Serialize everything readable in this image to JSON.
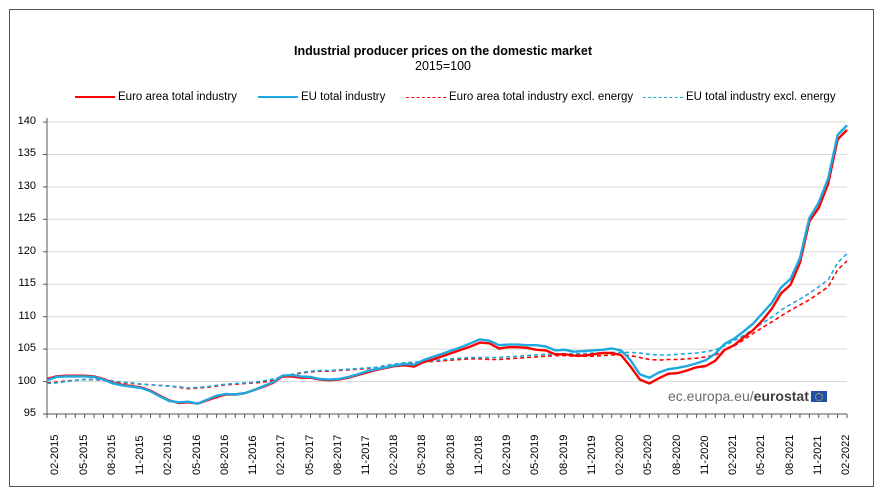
{
  "chart_data": {
    "type": "line",
    "title": "Industrial producer prices on the domestic market",
    "subtitle": "2015=100",
    "xlabel": "",
    "ylabel": "",
    "ylim": [
      95,
      140
    ],
    "yticks": [
      95,
      100,
      105,
      110,
      115,
      120,
      125,
      130,
      135,
      140
    ],
    "grid": true,
    "legend_position": "top",
    "x_tick_labels": [
      "02-2015",
      "05-2015",
      "08-2015",
      "11-2015",
      "02-2016",
      "05-2016",
      "08-2016",
      "11-2016",
      "02-2017",
      "05-2017",
      "08-2017",
      "11-2017",
      "02-2018",
      "05-2018",
      "08-2018",
      "11-2018",
      "02-2019",
      "05-2019",
      "08-2019",
      "11-2019",
      "02-2020",
      "05-2020",
      "08-2020",
      "11-2020",
      "02-2021",
      "05-2021",
      "08-2021",
      "11-2021",
      "02-2022"
    ],
    "x_start": "01-2015",
    "x_end": "02-2022",
    "series": [
      {
        "name": "Euro area total industry",
        "color": "#ff0000",
        "style": "solid",
        "values": [
          100.4,
          100.8,
          100.9,
          100.9,
          100.9,
          100.8,
          100.4,
          99.8,
          99.5,
          99.3,
          99.1,
          98.6,
          97.8,
          97.1,
          96.7,
          96.8,
          96.6,
          97.1,
          97.6,
          98.0,
          98.0,
          98.2,
          98.7,
          99.2,
          99.8,
          100.8,
          100.8,
          100.6,
          100.6,
          100.3,
          100.2,
          100.3,
          100.6,
          101.0,
          101.4,
          101.8,
          102.1,
          102.4,
          102.5,
          102.3,
          103.0,
          103.4,
          103.9,
          104.4,
          104.9,
          105.4,
          106.0,
          105.9,
          105.1,
          105.3,
          105.3,
          105.2,
          104.9,
          104.8,
          104.2,
          104.2,
          104.0,
          104.0,
          104.2,
          104.4,
          104.4,
          104.1,
          102.3,
          100.3,
          99.7,
          100.5,
          101.2,
          101.3,
          101.7,
          102.2,
          102.4,
          103.2,
          104.9,
          105.6,
          106.8,
          107.9,
          109.4,
          111.2,
          113.6,
          114.9,
          118.3,
          124.7,
          126.8,
          130.5,
          137.3,
          138.8
        ]
      },
      {
        "name": "EU total industry",
        "color": "#1ea8e0",
        "style": "solid",
        "values": [
          100.2,
          100.7,
          100.8,
          100.8,
          100.8,
          100.7,
          100.3,
          99.7,
          99.4,
          99.2,
          99.0,
          98.5,
          97.7,
          97.0,
          96.8,
          96.9,
          96.6,
          97.2,
          97.8,
          98.1,
          98.0,
          98.2,
          98.7,
          99.3,
          99.9,
          100.9,
          101.0,
          100.8,
          100.7,
          100.4,
          100.3,
          100.4,
          100.7,
          101.1,
          101.6,
          101.9,
          102.2,
          102.5,
          102.7,
          102.6,
          103.3,
          103.8,
          104.3,
          104.8,
          105.3,
          105.9,
          106.5,
          106.3,
          105.6,
          105.7,
          105.7,
          105.6,
          105.6,
          105.4,
          104.8,
          104.9,
          104.6,
          104.7,
          104.8,
          104.9,
          105.1,
          104.8,
          103.3,
          101.1,
          100.6,
          101.4,
          101.9,
          102.1,
          102.4,
          102.8,
          103.3,
          104.3,
          105.8,
          106.6,
          107.7,
          108.9,
          110.5,
          112.1,
          114.5,
          115.8,
          119.0,
          125.2,
          127.6,
          131.3,
          138.0,
          139.5
        ]
      },
      {
        "name": "Euro area total industry excl. energy",
        "color": "#ff0000",
        "style": "dashed",
        "values": [
          99.8,
          99.9,
          100.1,
          100.2,
          100.3,
          100.3,
          100.2,
          100.0,
          99.8,
          99.7,
          99.6,
          99.5,
          99.4,
          99.3,
          99.1,
          98.9,
          99.0,
          99.1,
          99.3,
          99.5,
          99.6,
          99.7,
          99.8,
          99.9,
          100.2,
          100.6,
          101.0,
          101.3,
          101.5,
          101.6,
          101.6,
          101.7,
          101.8,
          101.9,
          102.0,
          102.1,
          102.4,
          102.6,
          102.8,
          102.9,
          103.0,
          103.1,
          103.2,
          103.3,
          103.4,
          103.5,
          103.5,
          103.4,
          103.4,
          103.5,
          103.6,
          103.7,
          103.8,
          103.9,
          104.0,
          104.0,
          103.9,
          103.9,
          103.9,
          104.0,
          104.1,
          104.1,
          104.0,
          103.7,
          103.4,
          103.3,
          103.4,
          103.4,
          103.5,
          103.6,
          103.8,
          104.1,
          104.8,
          105.5,
          106.4,
          107.4,
          108.3,
          109.2,
          110.1,
          111.0,
          111.8,
          112.6,
          113.6,
          114.6,
          117.2,
          118.6
        ]
      },
      {
        "name": "EU total industry excl. energy",
        "color": "#1ea8e0",
        "style": "dashed",
        "values": [
          99.7,
          99.8,
          100.0,
          100.2,
          100.3,
          100.3,
          100.3,
          100.1,
          99.9,
          99.8,
          99.6,
          99.5,
          99.4,
          99.3,
          99.2,
          99.0,
          99.1,
          99.2,
          99.4,
          99.6,
          99.7,
          99.8,
          99.9,
          100.1,
          100.4,
          100.8,
          101.1,
          101.4,
          101.6,
          101.7,
          101.7,
          101.8,
          101.9,
          102.0,
          102.1,
          102.2,
          102.5,
          102.7,
          102.9,
          103.0,
          103.1,
          103.2,
          103.4,
          103.5,
          103.6,
          103.7,
          103.7,
          103.7,
          103.7,
          103.8,
          103.9,
          104.0,
          104.1,
          104.2,
          104.3,
          104.3,
          104.3,
          104.3,
          104.4,
          104.4,
          104.5,
          104.5,
          104.5,
          104.4,
          104.2,
          104.1,
          104.1,
          104.2,
          104.3,
          104.4,
          104.6,
          104.9,
          105.5,
          106.3,
          107.1,
          108.0,
          109.0,
          109.9,
          111.0,
          111.9,
          112.7,
          113.6,
          114.6,
          115.7,
          118.3,
          119.7
        ]
      }
    ]
  },
  "watermark": {
    "prefix": "ec.europa.eu/",
    "brand": "eurostat"
  }
}
